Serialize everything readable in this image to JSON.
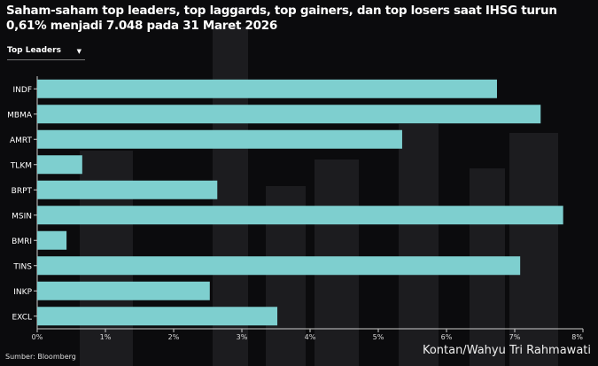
{
  "title": "Saham-saham top leaders, top laggards, top gainers, dan top losers saat IHSG turun 0,61% menjadi 7.048 pada 31 Maret 2026",
  "dropdown": {
    "selected": "Top Leaders"
  },
  "source": "Sumber: Bloomberg",
  "credit": "Kontan/Wahyu Tri Rahmawati",
  "colors": {
    "bar": "#7ecfcf",
    "background": "#0b0b0d"
  },
  "chart_data": {
    "type": "bar",
    "orientation": "horizontal",
    "categories": [
      "INDF",
      "MBMA",
      "AMRT",
      "TLKM",
      "BRPT",
      "MSIN",
      "BMRI",
      "TINS",
      "INKP",
      "EXCL"
    ],
    "values": [
      6.74,
      7.38,
      5.35,
      0.66,
      2.64,
      7.71,
      0.43,
      7.08,
      2.53,
      3.52
    ],
    "xlim": [
      0,
      8
    ],
    "xticks": [
      "0%",
      "1%",
      "2%",
      "3%",
      "4%",
      "5%",
      "6%",
      "7%",
      "8%"
    ],
    "grid": false
  }
}
